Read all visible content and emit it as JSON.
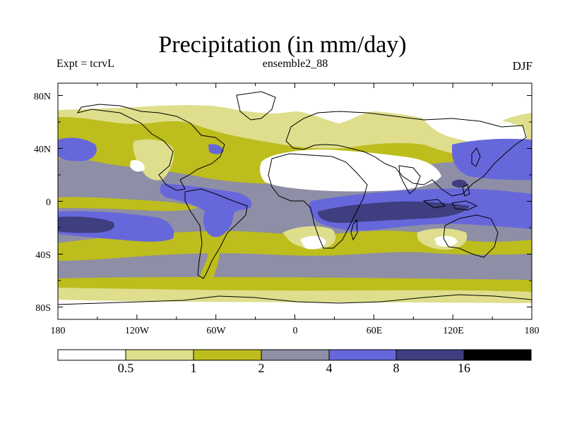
{
  "header": {
    "title": "Precipitation (in mm/day)",
    "experiment": "Expt = tcrvL",
    "run": "ensemble2_88",
    "season": "DJF"
  },
  "map": {
    "lat_labels": [
      "80N",
      "40N",
      "0",
      "40S",
      "80S"
    ],
    "lon_labels": [
      "180",
      "120W",
      "60W",
      "0",
      "60E",
      "120E",
      "180"
    ]
  },
  "colorbar": {
    "levels": [
      "0.5",
      "1",
      "2",
      "4",
      "8",
      "16"
    ],
    "colors": [
      "#ffffff",
      "#dede8c",
      "#bdbd1d",
      "#8e8ea6",
      "#6767dc",
      "#3e3e80",
      "#000000"
    ]
  }
}
